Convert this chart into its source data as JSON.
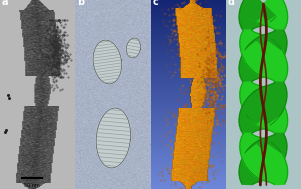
{
  "panel_labels": [
    "a",
    "b",
    "c",
    "d"
  ],
  "panel_a_bg": "#b0b8b8",
  "panel_b_bg": "#aabcbc",
  "panel_c_bg_top": "#1a2a6a",
  "panel_c_bg_bot": "#6080c0",
  "panel_d_bg": "#a8c0c4",
  "scale_bar_text": "50 nm",
  "fig_width": 3.01,
  "fig_height": 1.89,
  "dpi": 100
}
